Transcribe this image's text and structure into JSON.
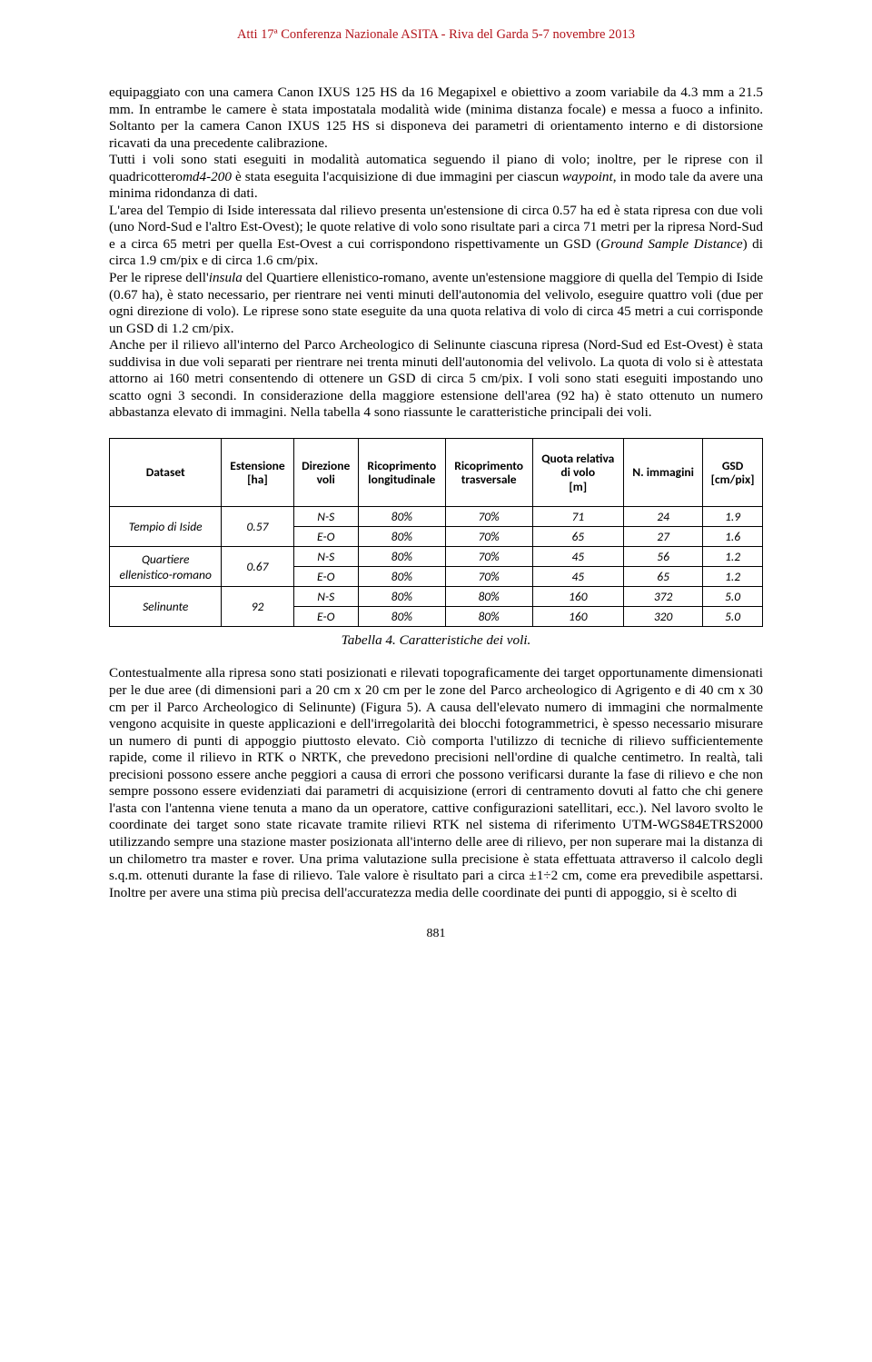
{
  "runningHeader": "Atti 17ª Conferenza Nazionale ASITA - Riva del Garda 5-7 novembre 2013",
  "para1": "equipaggiato con una camera Canon IXUS 125 HS da 16 Megapixel e obiettivo a zoom variabile da 4.3 mm a 21.5 mm. In entrambe le camere è stata impostatala modalità wide (minima distanza focale) e messa a fuoco a infinito. Soltanto per la camera Canon IXUS 125 HS si disponeva dei parametri di orientamento interno e di distorsione ricavati da una precedente calibrazione.",
  "para2a": "Tutti i voli sono stati eseguiti in modalità automatica seguendo il piano di volo; inoltre, per le riprese con il quadricottero",
  "para2i1": "md4-200",
  "para2b": " è stata eseguita l'acquisizione di due immagini per ciascun ",
  "para2i2": "waypoint",
  "para2c": ", in modo tale da avere una minima ridondanza di dati.",
  "para3a": "L'area del Tempio di Iside interessata dal rilievo presenta un'estensione di circa 0.57 ha ed è stata ripresa con due voli (uno Nord-Sud e l'altro Est-Ovest); le quote relative di volo sono risultate pari a circa 71 metri per la ripresa Nord-Sud e a circa 65 metri per quella Est-Ovest a cui corrispondono rispettivamente un GSD (",
  "para3i1": "Ground Sample Distance",
  "para3b": ") di circa 1.9 cm/pix e di circa 1.6 cm/pix.",
  "para4a": "Per le riprese dell'",
  "para4i1": "insula",
  "para4b": " del Quartiere ellenistico-romano, avente un'estensione maggiore di quella del Tempio di Iside (0.67 ha), è stato necessario, per rientrare nei venti minuti dell'autonomia del velivolo, eseguire quattro voli (due per ogni direzione di volo). Le riprese sono state eseguite da una quota relativa di volo di circa 45 metri a cui corrisponde un GSD di 1.2 cm/pix.",
  "para5": "Anche per il rilievo all'interno del Parco Archeologico di Selinunte ciascuna ripresa (Nord-Sud ed Est-Ovest) è stata suddivisa in due voli separati per rientrare nei trenta minuti dell'autonomia del velivolo. La quota di volo si è attestata attorno ai 160 metri consentendo di ottenere un GSD di circa 5 cm/pix. I voli sono stati eseguiti impostando uno scatto ogni 3 secondi. In considerazione della maggiore estensione dell'area (92 ha) è stato ottenuto un numero abbastanza elevato di immagini. Nella tabella 4 sono riassunte le caratteristiche principali dei voli.",
  "table": {
    "columns": [
      "Dataset",
      "Estensione [ha]",
      "Direzione voli",
      "Ricoprimento longitudinale",
      "Ricoprimento trasversale",
      "Quota relativa di volo [m]",
      "N. immagini",
      "GSD [cm/pix]"
    ],
    "datasets": [
      {
        "name": "Tempio di Iside",
        "ext": "0.57",
        "rows": [
          {
            "dir": "N-S",
            "rl": "80%",
            "rt": "70%",
            "q": "71",
            "n": "24",
            "gsd": "1.9"
          },
          {
            "dir": "E-O",
            "rl": "80%",
            "rt": "70%",
            "q": "65",
            "n": "27",
            "gsd": "1.6"
          }
        ]
      },
      {
        "name": "Quartiere ellenistico-romano",
        "ext": "0.67",
        "rows": [
          {
            "dir": "N-S",
            "rl": "80%",
            "rt": "70%",
            "q": "45",
            "n": "56",
            "gsd": "1.2"
          },
          {
            "dir": "E-O",
            "rl": "80%",
            "rt": "70%",
            "q": "45",
            "n": "65",
            "gsd": "1.2"
          }
        ]
      },
      {
        "name": "Selinunte",
        "ext": "92",
        "rows": [
          {
            "dir": "N-S",
            "rl": "80%",
            "rt": "80%",
            "q": "160",
            "n": "372",
            "gsd": "5.0"
          },
          {
            "dir": "E-O",
            "rl": "80%",
            "rt": "80%",
            "q": "160",
            "n": "320",
            "gsd": "5.0"
          }
        ]
      }
    ]
  },
  "tableCaption": "Tabella 4. Caratteristiche dei voli.",
  "para6": "Contestualmente alla ripresa sono stati posizionati e rilevati topograficamente dei target opportunamente dimensionati per le due aree (di dimensioni pari a 20 cm x 20 cm per le zone del Parco archeologico di Agrigento e di 40 cm x 30 cm per il Parco Archeologico di Selinunte) (Figura 5). A causa dell'elevato numero di immagini che normalmente vengono acquisite in queste applicazioni e dell'irregolarità dei blocchi fotogrammetrici, è spesso necessario misurare un numero di punti di appoggio piuttosto elevato. Ciò comporta l'utilizzo di tecniche di rilievo sufficientemente rapide, come il rilievo in RTK o NRTK, che prevedono precisioni nell'ordine di qualche centimetro. In realtà, tali precisioni possono essere anche peggiori a causa di errori che possono verificarsi durante la fase di rilievo e che non sempre possono essere evidenziati dai parametri di acquisizione (errori di centramento dovuti al fatto che chi genere l'asta con l'antenna viene tenuta a mano da un operatore, cattive configurazioni satellitari, ecc.). Nel lavoro svolto le coordinate dei target sono state ricavate tramite rilievi RTK nel sistema di riferimento UTM-WGS84ETRS2000 utilizzando sempre una stazione master posizionata all'interno delle aree di rilievo, per non superare mai la distanza di un chilometro tra master e rover. Una prima valutazione sulla precisione è stata effettuata attraverso il calcolo degli s.q.m. ottenuti durante la fase di rilievo. Tale valore è risultato pari a circa ±1÷2 cm, come era prevedibile aspettarsi. Inoltre per avere una stima più precisa dell'accuratezza media delle coordinate dei punti di appoggio, si è scelto di",
  "pageNumber": "881"
}
